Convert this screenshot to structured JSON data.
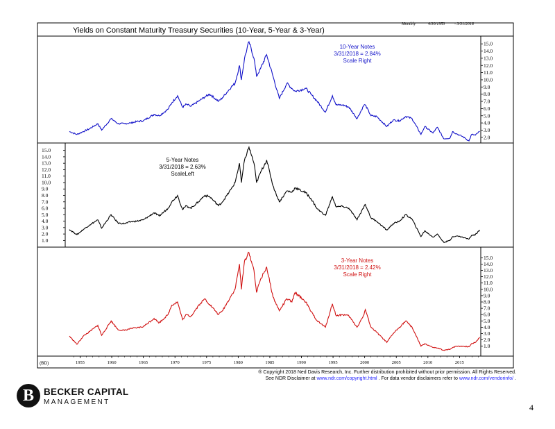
{
  "header": {
    "frequency": "Monthly",
    "start_date": "4/30/1953",
    "end_date": "- 3/31/2018"
  },
  "chart_data": {
    "type": "line",
    "title": "Yields on Constant Maturity Treasury Securities (10-Year, 5-Year & 3-Year)",
    "x_axis": {
      "range": [
        1953.3,
        2018.25
      ],
      "ticks": [
        "1955",
        "1960",
        "1965",
        "1970",
        "1975",
        "1980",
        "1985",
        "1990",
        "1995",
        "2000",
        "2005",
        "2010",
        "2015"
      ],
      "tick_years": [
        1955,
        1960,
        1965,
        1970,
        1975,
        1980,
        1985,
        1990,
        1995,
        2000,
        2005,
        2010,
        2015
      ],
      "corner_label": "(BD)"
    },
    "panels": [
      {
        "series": "10-Year Notes",
        "annotation": [
          "10-Year Notes",
          "3/31/2018 = 2.84%",
          "Scale Right"
        ],
        "color": "#1010c8",
        "axis_side": "right",
        "ylim": [
          1.5,
          15.5
        ],
        "ticks": [
          "15.0",
          "14.0",
          "13.0",
          "12.0",
          "11.0",
          "10.0",
          "9.0",
          "8.0",
          "7.0",
          "6.0",
          "5.0",
          "4.0",
          "3.0",
          "2.0"
        ],
        "x": [
          1953.3,
          1954.5,
          1955.5,
          1956.5,
          1957.8,
          1958.4,
          1959.9,
          1961,
          1962,
          1963,
          1964,
          1965,
          1966.7,
          1967.5,
          1968.9,
          1969.5,
          1970.4,
          1971.2,
          1971.8,
          1972.5,
          1973.7,
          1974.7,
          1975.5,
          1976.9,
          1977.5,
          1978.9,
          1979.5,
          1980.2,
          1980.5,
          1981.0,
          1981.7,
          1982.5,
          1982.9,
          1983.5,
          1984.5,
          1985.5,
          1986.5,
          1987.7,
          1988.5,
          1989.0,
          1990.7,
          1991.5,
          1992.5,
          1993.8,
          1994.9,
          1995.5,
          1996.5,
          1997.5,
          1998.8,
          1999.9,
          2000.1,
          2001.0,
          2001.9,
          2003.5,
          2004.5,
          2005.5,
          2006.5,
          2007.5,
          2008.9,
          2009.5,
          2010.8,
          2011.5,
          2012.5,
          2013.5,
          2013.9,
          2014.5,
          2015.5,
          2016.5,
          2016.9,
          2017.5,
          2018.2
        ],
        "values": [
          2.8,
          2.4,
          2.8,
          3.2,
          3.9,
          3.0,
          4.6,
          3.9,
          3.9,
          4.0,
          4.2,
          4.3,
          5.2,
          5.0,
          5.9,
          6.8,
          7.8,
          6.2,
          6.6,
          6.3,
          7.0,
          7.6,
          8.0,
          7.0,
          7.5,
          9.0,
          9.5,
          12.0,
          10.0,
          13.0,
          15.3,
          13.0,
          10.5,
          11.5,
          13.5,
          10.5,
          7.4,
          9.5,
          8.8,
          8.4,
          8.8,
          8.0,
          7.0,
          5.5,
          7.8,
          6.5,
          6.5,
          6.2,
          4.6,
          6.5,
          6.5,
          5.0,
          4.9,
          3.5,
          4.4,
          4.3,
          4.9,
          4.6,
          2.4,
          3.5,
          2.6,
          3.4,
          1.8,
          1.9,
          2.8,
          2.5,
          2.1,
          1.5,
          2.4,
          2.3,
          2.84
        ]
      },
      {
        "series": "5-Year Notes",
        "annotation": [
          "5-Year Notes",
          "3/31/2018 = 2.63%",
          "ScaleLeft"
        ],
        "color": "#000000",
        "axis_side": "left",
        "ylim": [
          0.5,
          15.5
        ],
        "ticks": [
          "15.0",
          "14.0",
          "13.0",
          "12.0",
          "11.0",
          "10.0",
          "9.0",
          "8.0",
          "7.0",
          "6.0",
          "5.0",
          "4.0",
          "3.0",
          "2.0",
          "1.0"
        ],
        "x": [
          1953.3,
          1954.5,
          1955.5,
          1956.5,
          1957.8,
          1958.4,
          1959.9,
          1961,
          1962,
          1963,
          1964,
          1965,
          1966.7,
          1967.5,
          1968.9,
          1969.5,
          1970.4,
          1971.2,
          1971.8,
          1972.5,
          1973.7,
          1974.7,
          1975.5,
          1976.9,
          1977.5,
          1978.9,
          1979.5,
          1980.2,
          1980.5,
          1981.0,
          1981.7,
          1982.5,
          1982.9,
          1983.5,
          1984.5,
          1985.5,
          1986.5,
          1987.7,
          1988.5,
          1989.0,
          1990.7,
          1991.5,
          1992.5,
          1993.8,
          1994.9,
          1995.5,
          1996.5,
          1997.5,
          1998.8,
          1999.9,
          2000.1,
          2001.0,
          2001.9,
          2003.5,
          2004.5,
          2005.5,
          2006.5,
          2007.5,
          2008.9,
          2009.5,
          2010.8,
          2011.5,
          2012.5,
          2013.5,
          2013.9,
          2014.5,
          2015.5,
          2016.5,
          2016.9,
          2017.5,
          2018.2
        ],
        "values": [
          2.7,
          1.9,
          2.7,
          3.4,
          4.2,
          2.9,
          5.0,
          3.7,
          3.6,
          3.9,
          4.0,
          4.2,
          5.3,
          4.8,
          6.0,
          7.0,
          8.0,
          5.8,
          6.4,
          6.0,
          7.0,
          8.0,
          7.8,
          6.4,
          7.0,
          9.0,
          10.0,
          13.0,
          10.0,
          13.5,
          15.5,
          13.0,
          10.0,
          11.5,
          13.5,
          9.5,
          7.0,
          8.7,
          8.5,
          9.2,
          8.4,
          7.5,
          5.9,
          4.9,
          7.8,
          6.2,
          6.3,
          6.0,
          4.2,
          6.3,
          6.6,
          4.5,
          4.0,
          2.6,
          3.6,
          4.0,
          5.0,
          4.3,
          1.6,
          2.5,
          1.5,
          2.0,
          0.7,
          1.0,
          1.6,
          1.7,
          1.5,
          1.2,
          1.8,
          1.9,
          2.63
        ]
      },
      {
        "series": "3-Year Notes",
        "annotation": [
          "3-Year Notes",
          "3/31/2018 = 2.42%",
          "Scale Right"
        ],
        "color": "#d01010",
        "axis_side": "right",
        "ylim": [
          0.2,
          15.8
        ],
        "ticks": [
          "15.0",
          "14.0",
          "13.0",
          "12.0",
          "11.0",
          "10.0",
          "9.0",
          "8.0",
          "7.0",
          "6.0",
          "5.0",
          "4.0",
          "3.0",
          "2.0",
          "1.0"
        ],
        "x": [
          1953.3,
          1954.5,
          1955.5,
          1956.5,
          1957.8,
          1958.4,
          1959.9,
          1961,
          1962,
          1963,
          1964,
          1965,
          1966.7,
          1967.5,
          1968.9,
          1969.5,
          1970.4,
          1971.2,
          1971.8,
          1972.5,
          1973.7,
          1974.7,
          1975.5,
          1976.9,
          1977.5,
          1978.9,
          1979.5,
          1980.2,
          1980.5,
          1981.0,
          1981.7,
          1982.5,
          1982.9,
          1983.5,
          1984.5,
          1985.5,
          1986.5,
          1987.7,
          1988.5,
          1989.0,
          1990.7,
          1991.5,
          1992.5,
          1993.8,
          1994.9,
          1995.5,
          1996.5,
          1997.5,
          1998.8,
          1999.9,
          2000.1,
          2001.0,
          2001.9,
          2003.5,
          2004.5,
          2005.5,
          2006.5,
          2007.5,
          2008.9,
          2009.5,
          2010.8,
          2011.5,
          2012.5,
          2013.5,
          2013.9,
          2014.5,
          2015.5,
          2016.5,
          2016.9,
          2017.5,
          2018.2
        ],
        "values": [
          2.6,
          1.3,
          2.6,
          3.3,
          4.3,
          2.7,
          5.0,
          3.6,
          3.5,
          3.8,
          3.9,
          4.1,
          5.4,
          4.7,
          6.0,
          7.5,
          8.0,
          5.2,
          6.0,
          5.7,
          7.4,
          8.5,
          7.6,
          6.0,
          6.6,
          9.0,
          10.0,
          14.0,
          10.0,
          14.5,
          15.8,
          13.0,
          9.5,
          11.5,
          13.5,
          8.8,
          6.6,
          8.5,
          8.0,
          9.5,
          8.0,
          6.5,
          5.0,
          4.0,
          7.7,
          5.8,
          6.0,
          5.8,
          4.0,
          6.0,
          6.8,
          4.0,
          3.2,
          1.6,
          3.0,
          4.0,
          5.0,
          4.0,
          1.0,
          1.4,
          0.8,
          0.7,
          0.35,
          0.5,
          0.8,
          1.0,
          1.0,
          0.9,
          1.4,
          1.6,
          2.42
        ]
      }
    ]
  },
  "footer": {
    "copyright_line": "® Copyright 2018 Ned Davis Research, Inc. Further distribution prohibited without prior permission. All Rights Reserved.",
    "disclaimer_prefix": "See NDR Disclaimer at",
    "disclaimer_link1": "www.ndr.com/copyright.html",
    "disclaimer_middle": ". For data vendor disclaimers refer to",
    "disclaimer_link2": "www.ndr.com/vendorinfo/",
    "disclaimer_suffix": "."
  },
  "brand": {
    "logo_letter": "B",
    "name_line1": "BECKER CAPITAL",
    "name_line2": "MANAGEMENT"
  },
  "page_number": "4"
}
